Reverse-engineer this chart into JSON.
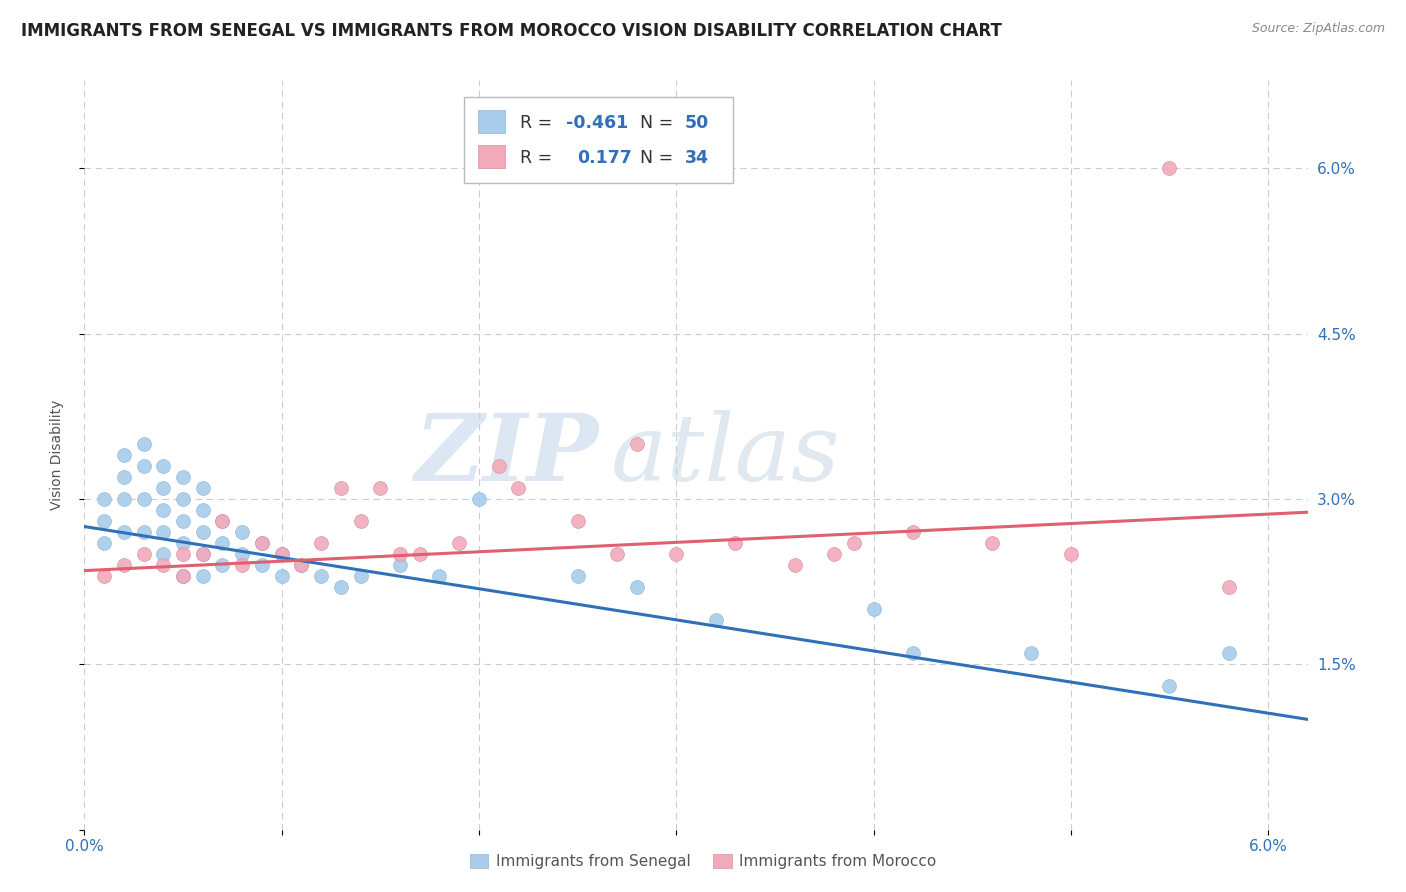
{
  "title": "IMMIGRANTS FROM SENEGAL VS IMMIGRANTS FROM MOROCCO VISION DISABILITY CORRELATION CHART",
  "source": "Source: ZipAtlas.com",
  "ylabel": "Vision Disability",
  "xlim": [
    0.0,
    0.062
  ],
  "ylim": [
    0.0,
    0.068
  ],
  "xticks": [
    0.0,
    0.01,
    0.02,
    0.03,
    0.04,
    0.05,
    0.06
  ],
  "xticklabels": [
    "0.0%",
    "",
    "",
    "",
    "",
    "",
    "6.0%"
  ],
  "yticks_right": [
    0.0,
    0.015,
    0.03,
    0.045,
    0.06
  ],
  "yticklabels_right": [
    "",
    "1.5%",
    "3.0%",
    "4.5%",
    "6.0%"
  ],
  "blue_R": "-0.461",
  "blue_N": "50",
  "pink_R": "0.177",
  "pink_N": "34",
  "blue_color": "#A8CCEA",
  "pink_color": "#F2AABB",
  "blue_line_color": "#3070B8",
  "pink_line_color": "#E06070",
  "watermark_zip": "ZIP",
  "watermark_atlas": "atlas",
  "background_color": "#FFFFFF",
  "grid_color": "#CCCCCC",
  "blue_scatter_x": [
    0.001,
    0.001,
    0.001,
    0.002,
    0.002,
    0.002,
    0.002,
    0.003,
    0.003,
    0.003,
    0.003,
    0.004,
    0.004,
    0.004,
    0.004,
    0.004,
    0.005,
    0.005,
    0.005,
    0.005,
    0.005,
    0.006,
    0.006,
    0.006,
    0.006,
    0.006,
    0.007,
    0.007,
    0.007,
    0.008,
    0.008,
    0.009,
    0.009,
    0.01,
    0.01,
    0.011,
    0.012,
    0.013,
    0.014,
    0.016,
    0.018,
    0.02,
    0.025,
    0.028,
    0.032,
    0.04,
    0.042,
    0.048,
    0.055,
    0.058
  ],
  "blue_scatter_y": [
    0.028,
    0.03,
    0.026,
    0.034,
    0.032,
    0.03,
    0.027,
    0.035,
    0.033,
    0.03,
    0.027,
    0.033,
    0.031,
    0.029,
    0.027,
    0.025,
    0.032,
    0.03,
    0.028,
    0.026,
    0.023,
    0.031,
    0.029,
    0.027,
    0.025,
    0.023,
    0.028,
    0.026,
    0.024,
    0.027,
    0.025,
    0.026,
    0.024,
    0.025,
    0.023,
    0.024,
    0.023,
    0.022,
    0.023,
    0.024,
    0.023,
    0.03,
    0.023,
    0.022,
    0.019,
    0.02,
    0.016,
    0.016,
    0.013,
    0.016
  ],
  "pink_scatter_x": [
    0.001,
    0.002,
    0.003,
    0.004,
    0.005,
    0.005,
    0.006,
    0.007,
    0.008,
    0.009,
    0.01,
    0.011,
    0.012,
    0.013,
    0.014,
    0.015,
    0.016,
    0.017,
    0.019,
    0.021,
    0.022,
    0.025,
    0.027,
    0.028,
    0.03,
    0.033,
    0.036,
    0.038,
    0.039,
    0.042,
    0.046,
    0.05,
    0.055,
    0.058
  ],
  "pink_scatter_y": [
    0.023,
    0.024,
    0.025,
    0.024,
    0.025,
    0.023,
    0.025,
    0.028,
    0.024,
    0.026,
    0.025,
    0.024,
    0.026,
    0.031,
    0.028,
    0.031,
    0.025,
    0.025,
    0.026,
    0.033,
    0.031,
    0.028,
    0.025,
    0.035,
    0.025,
    0.026,
    0.024,
    0.025,
    0.026,
    0.027,
    0.026,
    0.025,
    0.06,
    0.022
  ],
  "blue_line_x0": 0.0,
  "blue_line_y0": 0.0275,
  "blue_line_x1": 0.062,
  "blue_line_y1": 0.01,
  "pink_line_x0": 0.0,
  "pink_line_y0": 0.0235,
  "pink_line_x1": 0.062,
  "pink_line_y1": 0.0288,
  "legend_label_blue": "Immigrants from Senegal",
  "legend_label_pink": "Immigrants from Morocco",
  "title_fontsize": 12,
  "axis_label_fontsize": 10,
  "tick_fontsize": 11,
  "scatter_size": 100
}
